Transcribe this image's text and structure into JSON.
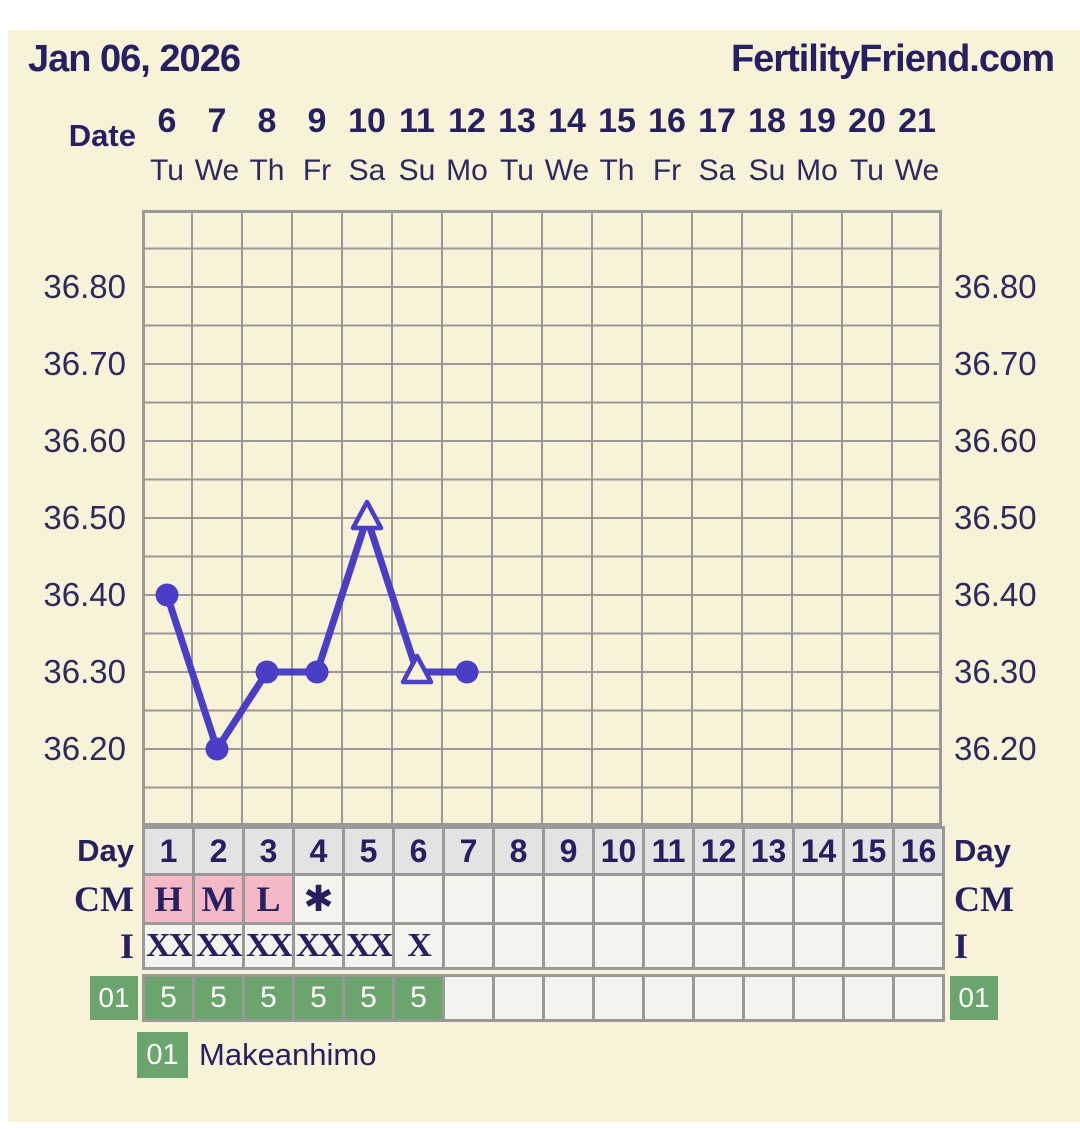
{
  "header": {
    "date_title": "Jan 06, 2026",
    "site_name": "FertilityFriend.com"
  },
  "axis": {
    "date_label": "Date",
    "dates": [
      "6",
      "7",
      "8",
      "9",
      "10",
      "11",
      "12",
      "13",
      "14",
      "15",
      "16",
      "17",
      "18",
      "19",
      "20",
      "21"
    ],
    "weekdays": [
      "Tu",
      "We",
      "Th",
      "Fr",
      "Sa",
      "Su",
      "Mo",
      "Tu",
      "We",
      "Th",
      "Fr",
      "Sa",
      "Su",
      "Mo",
      "Tu",
      "We"
    ]
  },
  "chart_data": {
    "type": "line",
    "x_days": [
      1,
      2,
      3,
      4,
      5,
      6,
      7
    ],
    "series": [
      {
        "name": "temperature",
        "values": [
          36.4,
          36.2,
          36.3,
          36.3,
          36.5,
          36.3,
          36.3
        ],
        "markers": [
          "circle",
          "circle",
          "circle",
          "circle",
          "triangle-open",
          "triangle-open",
          "circle"
        ]
      }
    ],
    "ytick_values": [
      36.8,
      36.7,
      36.6,
      36.5,
      36.4,
      36.3,
      36.2
    ],
    "ytick_labels": [
      "36.80",
      "36.70",
      "36.60",
      "36.50",
      "36.40",
      "36.30",
      "36.20"
    ],
    "ylim": [
      36.1,
      36.9
    ],
    "x_slots": 16,
    "grid": true,
    "line_color": "#4a3ec6"
  },
  "table": {
    "day_row": {
      "label": "Day",
      "values": [
        "1",
        "2",
        "3",
        "4",
        "5",
        "6",
        "7",
        "8",
        "9",
        "10",
        "11",
        "12",
        "13",
        "14",
        "15",
        "16"
      ]
    },
    "cm_row": {
      "label": "CM",
      "values": [
        "H",
        "M",
        "L",
        "✱",
        "",
        "",
        "",
        "",
        "",
        "",
        "",
        "",
        "",
        "",
        "",
        ""
      ],
      "pink_cells": [
        1,
        2,
        3
      ]
    },
    "intercourse_row": {
      "label": "I",
      "values": [
        "XX",
        "XX",
        "XX",
        "XX",
        "XX",
        "X",
        "",
        "",
        "",
        "",
        "",
        "",
        "",
        "",
        "",
        ""
      ]
    },
    "cycle_row": {
      "label": "01",
      "values": [
        "5",
        "5",
        "5",
        "5",
        "5",
        "5",
        "",
        "",
        "",
        "",
        "",
        "",
        "",
        "",
        "",
        ""
      ]
    }
  },
  "legend": {
    "cycle_id": "01",
    "name": "Makeanhimo"
  },
  "colors": {
    "page_bg": "#ffffff",
    "panel_bg": "#f7f2d8",
    "navy_text": "#272060",
    "line_purple": "#4a3ec6",
    "grid_gray": "#999999",
    "pink": "#f4b9c6",
    "green": "#6ba56d",
    "day_cell_gray": "#e3e3e3",
    "empty_cell": "#f4f4ef"
  }
}
